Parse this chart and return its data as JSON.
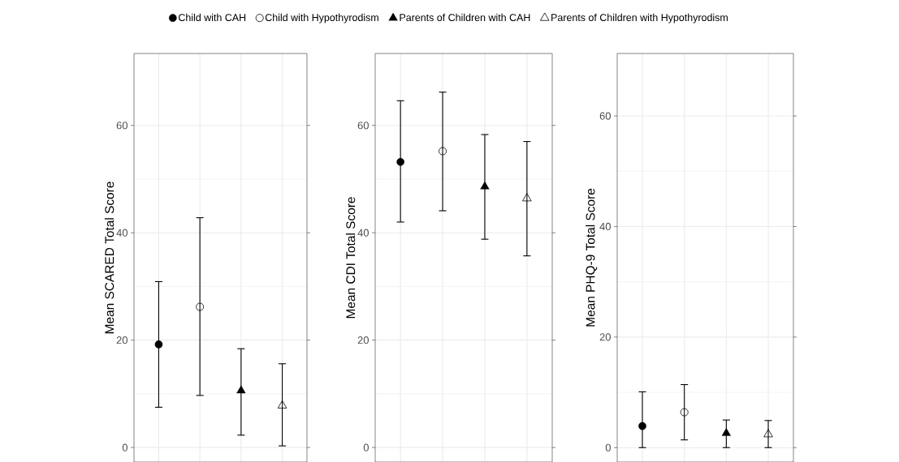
{
  "chart_data": [
    {
      "type": "scatter",
      "ylabel": "Mean SCARED Total Score",
      "categories": [
        null,
        null,
        null,
        null
      ],
      "ylim": [
        -2.7,
        73.4
      ],
      "yticks": [
        0,
        20,
        40,
        60
      ],
      "grid": true,
      "legend": "top",
      "tick_labels": "y",
      "series": [
        {
          "name": "Child with CAH",
          "color": "#000000",
          "marker": "circle",
          "values": [
            19.2,
            null,
            null,
            null
          ],
          "errors": [
            [
              7.5,
              30.9
            ],
            null,
            null,
            null
          ]
        },
        {
          "name": "Child with Hypothyrodism",
          "color": "#000000",
          "marker": "circle-open",
          "values": [
            null,
            26.2,
            null,
            null
          ],
          "errors": [
            null,
            [
              9.7,
              42.8
            ],
            null,
            null
          ]
        },
        {
          "name": "Parents of Children with CAH",
          "color": "#000000",
          "marker": "triangle",
          "values": [
            null,
            null,
            10.6,
            null
          ],
          "errors": [
            null,
            null,
            [
              2.3,
              18.4
            ],
            null
          ]
        },
        {
          "name": "Parents of Children with Hypothyrodism",
          "color": "#000000",
          "marker": "triangle-open",
          "values": [
            null,
            null,
            null,
            7.8
          ],
          "errors": [
            null,
            null,
            null,
            [
              0.3,
              15.6
            ]
          ]
        }
      ]
    },
    {
      "type": "scatter",
      "ylabel": "Mean CDI Total Score",
      "categories": [
        null,
        null,
        null,
        null
      ],
      "ylim": [
        -2.7,
        73.4
      ],
      "yticks": [
        0,
        20,
        40,
        60
      ],
      "grid": true,
      "tick_labels": "y",
      "series": [
        {
          "color": "#000000",
          "marker": "circle",
          "values": [
            53.2,
            null,
            null,
            null
          ],
          "errors": [
            [
              42.0,
              64.6
            ],
            null,
            null,
            null
          ]
        },
        {
          "color": "#000000",
          "marker": "circle-open",
          "values": [
            null,
            55.2,
            null,
            null
          ],
          "errors": [
            null,
            [
              44.1,
              66.2
            ],
            null,
            null
          ]
        },
        {
          "color": "#000000",
          "marker": "triangle",
          "values": [
            null,
            null,
            48.6,
            null
          ],
          "errors": [
            null,
            null,
            [
              38.8,
              58.3
            ],
            null
          ]
        },
        {
          "color": "#000000",
          "marker": "triangle-open",
          "values": [
            null,
            null,
            null,
            46.4
          ],
          "errors": [
            null,
            null,
            null,
            [
              35.7,
              57.0
            ]
          ]
        }
      ]
    },
    {
      "type": "scatter",
      "ylabel": "Mean PHQ-9 Total Score",
      "categories": [
        null,
        null,
        null,
        null
      ],
      "ylim": [
        -2.6,
        71.3
      ],
      "yticks": [
        0,
        20,
        40,
        60
      ],
      "grid": true,
      "tick_labels": "y",
      "series": [
        {
          "color": "#000000",
          "marker": "circle",
          "values": [
            3.9,
            null,
            null,
            null
          ],
          "errors": [
            [
              0.0,
              10.1
            ],
            null,
            null,
            null
          ]
        },
        {
          "color": "#000000",
          "marker": "circle-open",
          "values": [
            null,
            6.4,
            null,
            null
          ],
          "errors": [
            null,
            [
              1.4,
              11.4
            ],
            null,
            null
          ]
        },
        {
          "color": "#000000",
          "marker": "triangle",
          "values": [
            null,
            null,
            2.6,
            null
          ],
          "errors": [
            null,
            null,
            [
              0.0,
              5.0
            ],
            null
          ]
        },
        {
          "color": "#000000",
          "marker": "triangle-open",
          "values": [
            null,
            null,
            null,
            2.4
          ],
          "errors": [
            null,
            null,
            null,
            [
              0.0,
              4.9
            ]
          ]
        }
      ]
    }
  ]
}
